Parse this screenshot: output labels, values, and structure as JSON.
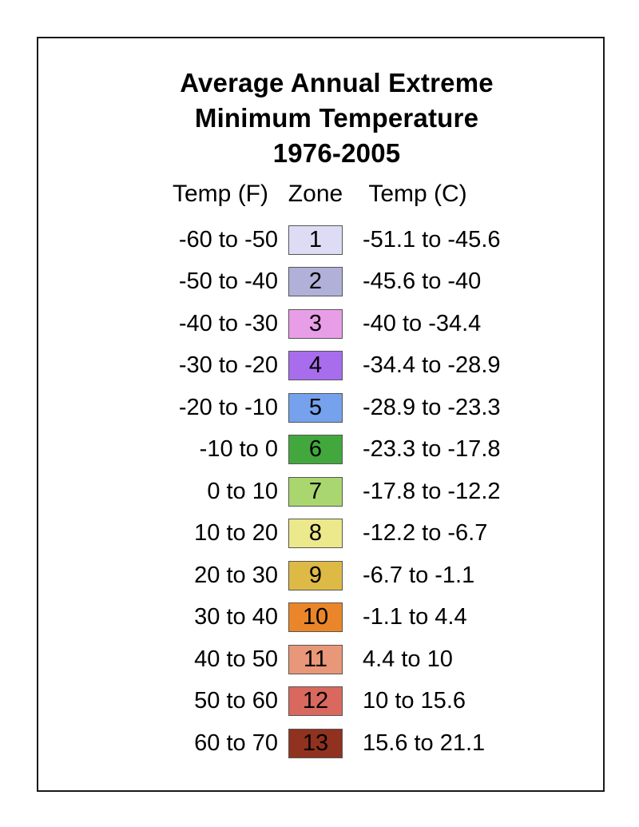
{
  "title": {
    "line1": "Average Annual Extreme",
    "line2": "Minimum Temperature",
    "line3": "1976-2005"
  },
  "colors": {
    "background": "#ffffff",
    "frame_border": "#1a1a1a",
    "swatch_border": "#555555",
    "text": "#000000"
  },
  "chart_data": {
    "type": "table",
    "title": "Average Annual Extreme Minimum Temperature 1976-2005",
    "columns": [
      "Temp (F)",
      "Zone",
      "Temp (C)"
    ],
    "legend_position": "center",
    "rows": [
      {
        "temp_f": "-60 to -50",
        "zone": "1",
        "temp_c": "-51.1 to -45.6",
        "color": "#dcdcf4"
      },
      {
        "temp_f": "-50 to -40",
        "zone": "2",
        "temp_c": "-45.6 to -40",
        "color": "#b0b0d8"
      },
      {
        "temp_f": "-40 to -30",
        "zone": "3",
        "temp_c": "-40 to -34.4",
        "color": "#e89ee6"
      },
      {
        "temp_f": "-30 to -20",
        "zone": "4",
        "temp_c": "-34.4 to -28.9",
        "color": "#a76dec"
      },
      {
        "temp_f": "-20 to -10",
        "zone": "5",
        "temp_c": "-28.9 to -23.3",
        "color": "#75a1ed"
      },
      {
        "temp_f": "-10 to 0",
        "zone": "6",
        "temp_c": "-23.3 to -17.8",
        "color": "#42a83e"
      },
      {
        "temp_f": "0 to 10",
        "zone": "7",
        "temp_c": "-17.8 to -12.2",
        "color": "#aad670"
      },
      {
        "temp_f": "10 to 20",
        "zone": "8",
        "temp_c": "-12.2 to -6.7",
        "color": "#ece88c"
      },
      {
        "temp_f": "20 to 30",
        "zone": "9",
        "temp_c": "-6.7 to -1.1",
        "color": "#ddba46"
      },
      {
        "temp_f": "30 to 40",
        "zone": "10",
        "temp_c": "-1.1 to 4.4",
        "color": "#ea8629"
      },
      {
        "temp_f": "40 to 50",
        "zone": "11",
        "temp_c": "4.4 to 10",
        "color": "#e99779"
      },
      {
        "temp_f": "50 to 60",
        "zone": "12",
        "temp_c": "10 to 15.6",
        "color": "#d9695e"
      },
      {
        "temp_f": "60 to 70",
        "zone": "13",
        "temp_c": "15.6 to 21.1",
        "color": "#90321f"
      }
    ]
  }
}
